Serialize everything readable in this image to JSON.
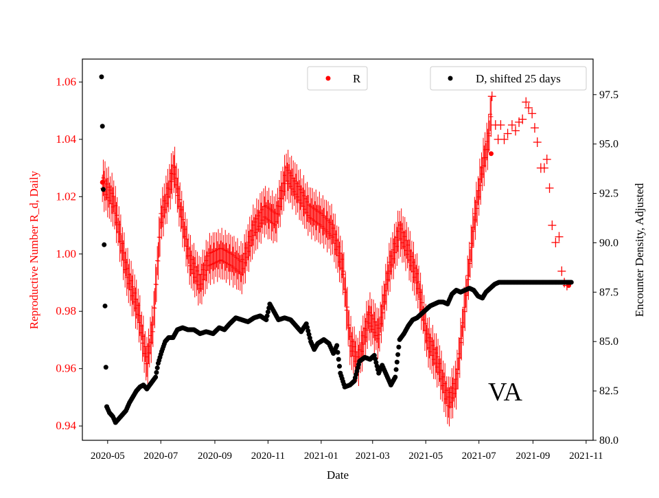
{
  "chart_data": {
    "type": "scatter",
    "xlabel": "Date",
    "ylabel_left": "Reproductive Number R_d, Daily",
    "ylabel_right": "Encounter Density, Adjusted",
    "annotation": "VA",
    "x_range": [
      "2020-04-02",
      "2021-11-09"
    ],
    "y_left_range": [
      0.935,
      1.068
    ],
    "y_right_range": [
      80.0,
      99.3
    ],
    "x_ticks": [
      "2020-05-01",
      "2020-07-01",
      "2020-09-01",
      "2020-11-01",
      "2021-01-01",
      "2021-03-01",
      "2021-05-01",
      "2021-07-01",
      "2021-09-01",
      "2021-11-01"
    ],
    "x_tick_labels": [
      "2020-05",
      "2020-07",
      "2020-09",
      "2020-11",
      "2021-01",
      "2021-03",
      "2021-05",
      "2021-07",
      "2021-09",
      "2021-11"
    ],
    "y_left_ticks": [
      0.94,
      0.96,
      0.98,
      1.0,
      1.02,
      1.04,
      1.06
    ],
    "y_left_tick_labels": [
      "0.94",
      "0.96",
      "0.98",
      "1.00",
      "1.02",
      "1.04",
      "1.06"
    ],
    "y_right_ticks": [
      80.0,
      82.5,
      85.0,
      87.5,
      90.0,
      92.5,
      95.0,
      97.5
    ],
    "y_right_tick_labels": [
      "80.0",
      "82.5",
      "85.0",
      "87.5",
      "90.0",
      "92.5",
      "95.0",
      "97.5"
    ],
    "legend": [
      {
        "name": "R",
        "color": "#ff0000",
        "placement": "upper-center"
      },
      {
        "name": "D, shifted 25 days",
        "color": "#000000",
        "placement": "upper-right"
      }
    ],
    "colors": {
      "r_series": "#ff0000",
      "d_series": "#000000",
      "left_axis_text": "#ff0000"
    },
    "R_series": {
      "name": "R",
      "axis": "left",
      "start_date": "2020-04-25",
      "end_date": "2021-07-15",
      "error_bar_half_width_approx": 0.006,
      "center_points": [
        [
          "2020-04-25",
          1.025
        ],
        [
          "2020-05-08",
          1.018
        ],
        [
          "2020-05-22",
          0.995
        ],
        [
          "2020-06-05",
          0.98
        ],
        [
          "2020-06-15",
          0.962
        ],
        [
          "2020-06-22",
          0.975
        ],
        [
          "2020-07-01",
          1.012
        ],
        [
          "2020-07-10",
          1.022
        ],
        [
          "2020-07-16",
          1.03
        ],
        [
          "2020-07-24",
          1.015
        ],
        [
          "2020-08-03",
          0.998
        ],
        [
          "2020-08-15",
          0.99
        ],
        [
          "2020-08-25",
          0.998
        ],
        [
          "2020-09-08",
          1.0
        ],
        [
          "2020-09-20",
          0.998
        ],
        [
          "2020-10-02",
          0.995
        ],
        [
          "2020-10-15",
          1.008
        ],
        [
          "2020-10-28",
          1.015
        ],
        [
          "2020-11-10",
          1.012
        ],
        [
          "2020-11-22",
          1.028
        ],
        [
          "2020-12-05",
          1.022
        ],
        [
          "2020-12-18",
          1.015
        ],
        [
          "2021-01-01",
          1.012
        ],
        [
          "2021-01-14",
          1.008
        ],
        [
          "2021-01-26",
          0.995
        ],
        [
          "2021-02-03",
          0.97
        ],
        [
          "2021-02-12",
          0.962
        ],
        [
          "2021-02-25",
          0.978
        ],
        [
          "2021-03-08",
          0.972
        ],
        [
          "2021-03-20",
          0.995
        ],
        [
          "2021-04-01",
          1.008
        ],
        [
          "2021-04-10",
          1.002
        ],
        [
          "2021-04-22",
          0.99
        ],
        [
          "2021-05-03",
          0.97
        ],
        [
          "2021-05-15",
          0.962
        ],
        [
          "2021-05-27",
          0.948
        ],
        [
          "2021-06-05",
          0.955
        ],
        [
          "2021-06-15",
          0.982
        ],
        [
          "2021-06-25",
          1.01
        ],
        [
          "2021-07-05",
          1.03
        ],
        [
          "2021-07-12",
          1.04
        ],
        [
          "2021-07-15",
          1.05
        ]
      ],
      "sparse_points": [
        [
          "2021-07-16",
          1.055
        ],
        [
          "2021-07-20",
          1.045
        ],
        [
          "2021-07-23",
          1.04
        ],
        [
          "2021-07-26",
          1.045
        ],
        [
          "2021-07-30",
          1.04
        ],
        [
          "2021-08-03",
          1.042
        ],
        [
          "2021-08-08",
          1.045
        ],
        [
          "2021-08-12",
          1.043
        ],
        [
          "2021-08-16",
          1.046
        ],
        [
          "2021-08-20",
          1.047
        ],
        [
          "2021-08-24",
          1.053
        ],
        [
          "2021-08-27",
          1.051
        ],
        [
          "2021-08-31",
          1.049
        ],
        [
          "2021-09-03",
          1.044
        ],
        [
          "2021-09-06",
          1.039
        ],
        [
          "2021-09-10",
          1.03
        ],
        [
          "2021-09-14",
          1.03
        ],
        [
          "2021-09-17",
          1.033
        ],
        [
          "2021-09-20",
          1.023
        ],
        [
          "2021-09-23",
          1.01
        ],
        [
          "2021-09-27",
          1.004
        ],
        [
          "2021-10-01",
          1.006
        ],
        [
          "2021-10-04",
          0.994
        ],
        [
          "2021-10-07",
          0.99
        ],
        [
          "2021-10-10",
          0.989
        ]
      ]
    },
    "D_series": {
      "name": "D, shifted 25 days",
      "axis": "right",
      "points": [
        [
          "2020-04-24",
          98.4
        ],
        [
          "2020-04-25",
          95.9
        ],
        [
          "2020-04-26",
          92.7
        ],
        [
          "2020-04-27",
          89.9
        ],
        [
          "2020-04-28",
          86.8
        ],
        [
          "2020-04-29",
          83.7
        ],
        [
          "2020-04-30",
          81.7
        ],
        [
          "2020-05-03",
          81.4
        ],
        [
          "2020-05-07",
          81.2
        ],
        [
          "2020-05-10",
          80.9
        ],
        [
          "2020-05-14",
          81.1
        ],
        [
          "2020-05-18",
          81.3
        ],
        [
          "2020-05-22",
          81.5
        ],
        [
          "2020-05-26",
          81.9
        ],
        [
          "2020-05-30",
          82.2
        ],
        [
          "2020-06-03",
          82.5
        ],
        [
          "2020-06-07",
          82.7
        ],
        [
          "2020-06-11",
          82.8
        ],
        [
          "2020-06-15",
          82.6
        ],
        [
          "2020-06-20",
          82.9
        ],
        [
          "2020-06-25",
          83.2
        ],
        [
          "2020-06-28",
          83.9
        ],
        [
          "2020-07-02",
          84.5
        ],
        [
          "2020-07-06",
          85.0
        ],
        [
          "2020-07-10",
          85.2
        ],
        [
          "2020-07-15",
          85.2
        ],
        [
          "2020-07-20",
          85.6
        ],
        [
          "2020-07-26",
          85.7
        ],
        [
          "2020-08-01",
          85.6
        ],
        [
          "2020-08-08",
          85.6
        ],
        [
          "2020-08-15",
          85.4
        ],
        [
          "2020-08-22",
          85.5
        ],
        [
          "2020-08-30",
          85.4
        ],
        [
          "2020-09-06",
          85.7
        ],
        [
          "2020-09-12",
          85.6
        ],
        [
          "2020-09-18",
          85.9
        ],
        [
          "2020-09-25",
          86.2
        ],
        [
          "2020-10-02",
          86.1
        ],
        [
          "2020-10-09",
          86.0
        ],
        [
          "2020-10-16",
          86.2
        ],
        [
          "2020-10-23",
          86.3
        ],
        [
          "2020-10-30",
          86.1
        ],
        [
          "2020-11-03",
          86.9
        ],
        [
          "2020-11-08",
          86.5
        ],
        [
          "2020-11-13",
          86.1
        ],
        [
          "2020-11-20",
          86.2
        ],
        [
          "2020-11-27",
          86.1
        ],
        [
          "2020-12-03",
          85.8
        ],
        [
          "2020-12-09",
          85.5
        ],
        [
          "2020-12-15",
          85.9
        ],
        [
          "2020-12-20",
          85.0
        ],
        [
          "2020-12-24",
          84.6
        ],
        [
          "2020-12-28",
          84.9
        ],
        [
          "2021-01-04",
          85.1
        ],
        [
          "2021-01-10",
          84.9
        ],
        [
          "2021-01-15",
          84.4
        ],
        [
          "2021-01-19",
          84.8
        ],
        [
          "2021-01-23",
          83.4
        ],
        [
          "2021-01-28",
          82.7
        ],
        [
          "2021-02-03",
          82.8
        ],
        [
          "2021-02-08",
          83.0
        ],
        [
          "2021-02-14",
          84.0
        ],
        [
          "2021-02-20",
          84.2
        ],
        [
          "2021-02-26",
          84.1
        ],
        [
          "2021-03-03",
          84.3
        ],
        [
          "2021-03-08",
          83.4
        ],
        [
          "2021-03-12",
          83.8
        ],
        [
          "2021-03-17",
          83.3
        ],
        [
          "2021-03-22",
          82.8
        ],
        [
          "2021-03-27",
          83.2
        ],
        [
          "2021-04-01",
          85.1
        ],
        [
          "2021-04-06",
          85.4
        ],
        [
          "2021-04-11",
          85.8
        ],
        [
          "2021-04-16",
          86.1
        ],
        [
          "2021-04-21",
          86.2
        ],
        [
          "2021-04-26",
          86.4
        ],
        [
          "2021-05-01",
          86.6
        ],
        [
          "2021-05-06",
          86.8
        ],
        [
          "2021-05-11",
          86.9
        ],
        [
          "2021-05-16",
          87.0
        ],
        [
          "2021-05-21",
          87.0
        ],
        [
          "2021-05-26",
          86.9
        ],
        [
          "2021-05-31",
          87.4
        ],
        [
          "2021-06-05",
          87.6
        ],
        [
          "2021-06-10",
          87.5
        ],
        [
          "2021-06-15",
          87.6
        ],
        [
          "2021-06-20",
          87.7
        ],
        [
          "2021-06-25",
          87.6
        ],
        [
          "2021-06-30",
          87.3
        ],
        [
          "2021-07-05",
          87.2
        ],
        [
          "2021-07-09",
          87.5
        ],
        [
          "2021-07-14",
          87.7
        ],
        [
          "2021-07-19",
          87.9
        ],
        [
          "2021-07-24",
          88.0
        ],
        [
          "2021-07-29",
          88.0
        ],
        [
          "2021-08-05",
          88.0
        ],
        [
          "2021-08-15",
          88.0
        ],
        [
          "2021-08-25",
          88.0
        ],
        [
          "2021-09-05",
          88.0
        ],
        [
          "2021-09-15",
          88.0
        ],
        [
          "2021-09-25",
          88.0
        ],
        [
          "2021-10-05",
          88.0
        ],
        [
          "2021-10-15",
          88.0
        ]
      ]
    }
  }
}
